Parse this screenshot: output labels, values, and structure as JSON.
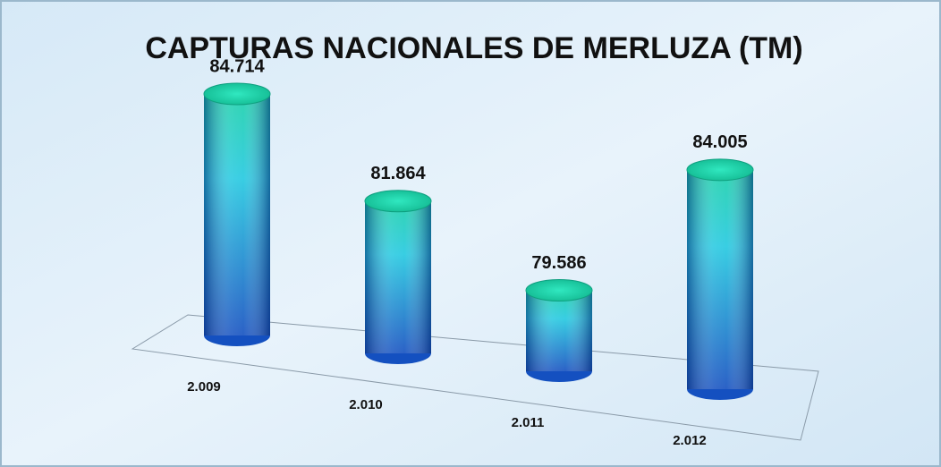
{
  "chart_data": {
    "type": "cylinder",
    "title": "CAPTURAS NACIONALES DE MERLUZA (TM)",
    "categories": [
      "2.009",
      "2.010",
      "2.011",
      "2.012"
    ],
    "values": [
      84714,
      81864,
      79586,
      84005
    ],
    "value_labels": [
      "84.714",
      "81.864",
      "79.586",
      "84.005"
    ],
    "color": "#22c8e0",
    "ylim": [
      77000,
      85000
    ]
  }
}
